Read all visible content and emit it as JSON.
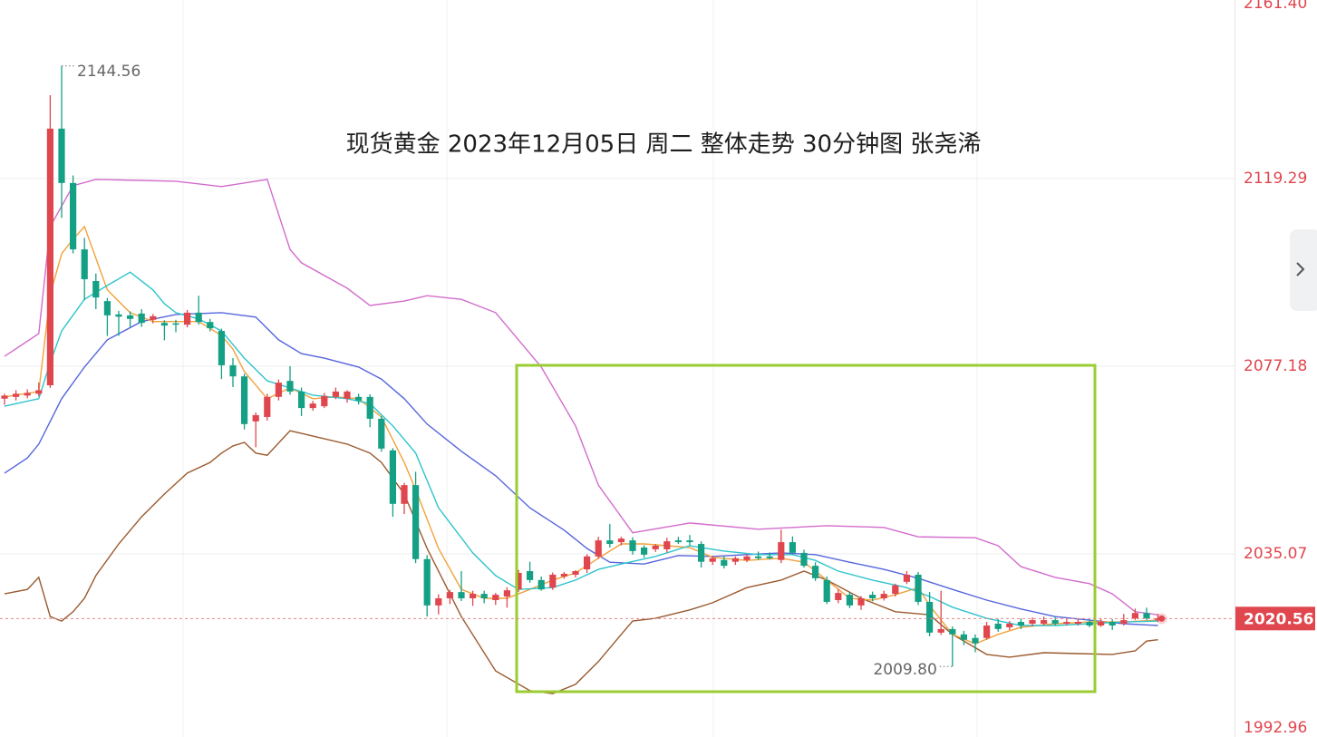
{
  "chart_data": {
    "type": "candlestick",
    "title": "现货黄金 2023年12月05日 周二 整体走势  30分钟图  张尧浠",
    "up_color": "#e0464e",
    "down_color": "#14a085",
    "ylim": [
      1992.96,
      2161.4
    ],
    "yticks": [
      {
        "value": 2161.4,
        "label": "2161.40"
      },
      2119.29,
      2077.18,
      2035.07,
      1992.96
    ],
    "grid": true,
    "last_price": 2020.56,
    "annotations": [
      2144.56,
      {
        "value": 2009.8,
        "label": "2009.80"
      }
    ],
    "open": [
      2069.9,
      2070.3,
      2070.6,
      2071.0,
      2072.9,
      2130.5,
      2118.3,
      2103.4,
      2096.3,
      2091.8,
      2088.8,
      2088.6,
      2089.0,
      2087.6,
      2086.9,
      2086.8,
      2086.5,
      2089.2,
      2087.1,
      2085.1,
      2077.4,
      2074.9,
      2064.8,
      2065.8,
      2070.3,
      2073.9,
      2071.5,
      2067.8,
      2068.2,
      2070.3,
      2069.9,
      2070.3,
      2070.3,
      2065.4,
      2058.3,
      2046.3,
      2050.5,
      2033.9,
      2023.5,
      2025.1,
      2026.5,
      2025.1,
      2026.1,
      2024.7,
      2025.5,
      2027.1,
      2031.2,
      2029.2,
      2027.5,
      2030.0,
      2030.4,
      2031.6,
      2034.5,
      2038.1,
      2037.7,
      2038.1,
      2036.5,
      2036.1,
      2036.1,
      2038.1,
      2038.1,
      2037.3,
      2033.3,
      2033.7,
      2033.3,
      2033.7,
      2034.5,
      2034.5,
      2033.7,
      2037.7,
      2035.3,
      2032.4,
      2029.2,
      2024.7,
      2025.9,
      2023.5,
      2025.9,
      2025.1,
      2026.1,
      2028.8,
      2030.4,
      2024.3,
      2017.4,
      2018.2,
      2017.0,
      2016.2,
      2016.2,
      2019.4,
      2018.6,
      2019.8,
      2019.4,
      2019.4,
      2020.2,
      2019.4,
      2019.4,
      2019.8,
      2019.0,
      2019.8,
      2019.4,
      2020.6,
      2021.8,
      2020.2
    ],
    "high": [
      2071.0,
      2071.8,
      2072.0,
      2073.5,
      2138.0,
      2144.56,
      2120.0,
      2106.0,
      2098.0,
      2092.5,
      2089.6,
      2089.5,
      2090.0,
      2088.9,
      2087.5,
      2087.6,
      2089.8,
      2093.0,
      2087.8,
      2085.6,
      2079.0,
      2075.5,
      2066.8,
      2071.0,
      2074.2,
      2077.2,
      2072.4,
      2069.4,
      2071.2,
      2072.4,
      2071.8,
      2071.0,
      2070.9,
      2066.0,
      2058.8,
      2051.0,
      2053.5,
      2034.8,
      2026.0,
      2027.0,
      2031.2,
      2026.8,
      2026.8,
      2026.3,
      2027.6,
      2031.5,
      2033.3,
      2030.0,
      2030.9,
      2031.0,
      2031.4,
      2035.0,
      2038.9,
      2041.8,
      2038.9,
      2038.8,
      2037.0,
      2037.3,
      2038.7,
      2038.9,
      2039.3,
      2037.9,
      2034.6,
      2034.6,
      2034.5,
      2035.0,
      2035.6,
      2035.4,
      2040.5,
      2039.0,
      2036.0,
      2033.2,
      2030.0,
      2027.2,
      2026.5,
      2025.6,
      2026.6,
      2026.8,
      2028.4,
      2031.2,
      2031.0,
      2026.5,
      2026.8,
      2018.8,
      2017.8,
      2017.0,
      2019.8,
      2020.5,
      2020.0,
      2020.6,
      2020.8,
      2021.0,
      2021.0,
      2020.6,
      2020.5,
      2020.4,
      2020.5,
      2020.4,
      2021.6,
      2022.8,
      2023.0,
      2021.6
    ],
    "low": [
      2068.5,
      2069.5,
      2070.0,
      2070.4,
      2072.3,
      2110.5,
      2102.5,
      2092.0,
      2090.0,
      2084.0,
      2084.0,
      2086.0,
      2086.0,
      2086.8,
      2083.0,
      2084.8,
      2085.9,
      2086.5,
      2085.0,
      2074.3,
      2072.5,
      2063.0,
      2059.0,
      2065.0,
      2069.5,
      2070.8,
      2066.0,
      2067.2,
      2067.8,
      2069.8,
      2069.0,
      2068.6,
      2063.5,
      2058.0,
      2043.4,
      2044.0,
      2033.0,
      2021.0,
      2021.5,
      2023.8,
      2024.5,
      2023.4,
      2024.0,
      2023.6,
      2023.0,
      2026.5,
      2028.6,
      2026.8,
      2027.0,
      2029.5,
      2029.8,
      2030.8,
      2034.0,
      2036.5,
      2037.0,
      2034.9,
      2034.2,
      2035.5,
      2035.4,
      2037.3,
      2037.0,
      2032.0,
      2032.6,
      2031.8,
      2032.6,
      2033.2,
      2033.7,
      2033.8,
      2033.0,
      2034.9,
      2032.0,
      2029.0,
      2023.8,
      2024.0,
      2022.9,
      2022.5,
      2024.4,
      2024.6,
      2025.5,
      2028.3,
      2023.6,
      2016.6,
      2016.9,
      2009.8,
      2014.6,
      2013.0,
      2015.8,
      2017.6,
      2018.0,
      2018.2,
      2018.8,
      2019.0,
      2019.0,
      2019.0,
      2019.0,
      2018.6,
      2018.7,
      2018.0,
      2019.0,
      2020.2,
      2020.2,
      2019.8
    ],
    "close": [
      2070.6,
      2071.0,
      2071.2,
      2071.8,
      2130.5,
      2118.3,
      2103.4,
      2096.7,
      2092.6,
      2088.6,
      2088.3,
      2087.8,
      2086.9,
      2088.4,
      2086.3,
      2086.5,
      2089.2,
      2087.1,
      2085.7,
      2077.4,
      2074.9,
      2064.2,
      2066.2,
      2070.3,
      2073.5,
      2071.5,
      2067.8,
      2068.8,
      2070.5,
      2071.5,
      2071.5,
      2069.5,
      2065.4,
      2058.7,
      2046.3,
      2050.5,
      2033.9,
      2023.5,
      2025.1,
      2026.5,
      2025.1,
      2026.1,
      2025.1,
      2025.9,
      2026.9,
      2030.8,
      2029.2,
      2027.1,
      2030.4,
      2030.6,
      2031.2,
      2034.5,
      2038.1,
      2037.3,
      2038.5,
      2035.7,
      2034.9,
      2036.9,
      2037.9,
      2037.7,
      2037.7,
      2033.3,
      2034.1,
      2032.4,
      2034.1,
      2034.5,
      2034.1,
      2034.1,
      2037.7,
      2035.3,
      2032.4,
      2029.6,
      2024.3,
      2026.3,
      2023.5,
      2025.1,
      2025.1,
      2026.1,
      2028.0,
      2030.4,
      2024.3,
      2017.4,
      2018.2,
      2017.0,
      2015.8,
      2015.0,
      2019.0,
      2018.2,
      2019.4,
      2019.0,
      2020.2,
      2020.2,
      2019.4,
      2019.8,
      2019.8,
      2019.0,
      2019.8,
      2019.0,
      2020.2,
      2021.8,
      2020.6,
      2020.56
    ],
    "lines": [
      {
        "color": "#d36ccc",
        "x": [
          0,
          3,
          4,
          6,
          8,
          15,
          19,
          23,
          25,
          26,
          30,
          32,
          35,
          37,
          40,
          43,
          45,
          47,
          50,
          52,
          54,
          55,
          60,
          66,
          72,
          77,
          80,
          85,
          87,
          89,
          92,
          95,
          97,
          99,
          101
        ],
        "values": [
          2079.4,
          2084.5,
          2108.5,
          2117.7,
          2119.1,
          2118.7,
          2117.5,
          2119.1,
          2103.4,
          2100.4,
          2094.7,
          2090.8,
          2091.8,
          2093.0,
          2092.2,
          2089.2,
          2083.1,
          2077.0,
          2063.8,
          2050.5,
          2043.4,
          2039.8,
          2042.0,
          2040.6,
          2041.4,
          2041.0,
          2038.9,
          2038.7,
          2036.9,
          2032.2,
          2029.8,
          2028.4,
          2026.1,
          2022.1,
          2021.4
        ]
      },
      {
        "color": "#9a5a2e",
        "x": [
          0,
          2,
          3,
          4,
          5,
          6,
          7,
          8,
          10,
          12,
          14,
          16,
          18,
          19,
          20,
          21,
          22,
          23,
          25,
          26,
          30,
          32,
          33,
          35,
          37,
          40,
          43,
          46,
          48,
          50,
          52,
          54,
          55,
          57,
          60,
          62,
          65,
          68,
          70,
          72,
          75,
          78,
          81,
          83,
          86,
          88,
          91,
          94,
          97,
          99,
          100,
          101
        ],
        "values": [
          2026.1,
          2027.1,
          2029.8,
          2021.0,
          2020.0,
          2022.1,
          2025.1,
          2030.2,
          2037.3,
          2043.4,
          2048.5,
          2053.2,
          2055.6,
          2057.7,
          2059.3,
          2060.1,
          2057.7,
          2057.2,
          2062.7,
          2062.1,
          2059.7,
          2057.7,
          2055.6,
          2048.5,
          2036.3,
          2021.0,
          2008.8,
          2004.4,
          2003.7,
          2005.8,
          2010.9,
          2017.0,
          2020.0,
          2020.6,
          2022.5,
          2024.1,
          2027.5,
          2029.2,
          2031.2,
          2029.2,
          2025.1,
          2022.1,
          2021.4,
          2017.0,
          2012.5,
          2011.9,
          2012.9,
          2012.7,
          2012.5,
          2013.3,
          2015.5,
          2015.8
        ]
      },
      {
        "color": "#5566dd",
        "x": [
          0,
          2,
          3,
          5,
          7,
          9,
          12,
          15,
          17,
          19,
          22,
          24,
          26,
          28,
          31,
          33,
          35,
          37,
          40,
          43,
          46,
          49,
          51,
          53,
          56,
          59,
          62,
          65,
          68,
          71,
          74,
          77,
          80,
          83,
          86,
          89,
          92,
          95,
          98,
          101
        ],
        "values": [
          2053.2,
          2056.6,
          2059.7,
          2069.9,
          2077.0,
          2083.1,
          2087.2,
          2088.8,
          2089.0,
          2089.2,
          2088.2,
          2083.1,
          2080.0,
          2079.0,
          2077.0,
          2074.3,
          2069.9,
          2064.2,
          2058.1,
          2052.6,
          2045.4,
          2040.4,
          2036.3,
          2033.2,
          2032.8,
          2034.7,
          2034.5,
          2034.9,
          2035.3,
          2034.9,
          2033.2,
          2031.6,
          2029.6,
          2027.1,
          2024.7,
          2022.7,
          2021.0,
          2020.2,
          2019.4,
          2019.0
        ]
      },
      {
        "color": "#f2a23a",
        "x": [
          0,
          3,
          4,
          5,
          6,
          7,
          8,
          9,
          11,
          13,
          15,
          17,
          19,
          20,
          21,
          23,
          25,
          27,
          29,
          31,
          33,
          35,
          36,
          38,
          40,
          42,
          44,
          46,
          48,
          50,
          52,
          54,
          56,
          58,
          60,
          62,
          65,
          68,
          70,
          72,
          74,
          76,
          78,
          80,
          81,
          83,
          85,
          87,
          89,
          92,
          95,
          98,
          101
        ],
        "values": [
          2070.3,
          2071.5,
          2093.3,
          2102.4,
          2105.7,
          2108.5,
          2101.4,
          2094.3,
          2089.2,
          2087.2,
          2087.2,
          2087.2,
          2084.1,
          2081.0,
          2076.0,
          2069.9,
          2072.3,
          2069.9,
          2070.3,
          2069.9,
          2065.8,
          2055.6,
          2049.5,
          2036.3,
          2027.1,
          2025.1,
          2025.1,
          2027.1,
          2029.2,
          2030.8,
          2034.1,
          2037.3,
          2037.3,
          2036.9,
          2036.5,
          2034.3,
          2033.6,
          2034.1,
          2033.2,
          2029.2,
          2025.1,
          2024.7,
          2025.9,
          2027.5,
          2023.5,
          2017.0,
          2014.9,
          2017.0,
          2018.6,
          2019.4,
          2019.8,
          2019.8,
          2020.2
        ]
      },
      {
        "color": "#2ec4cc",
        "x": [
          0,
          3,
          4,
          5,
          7,
          9,
          11,
          13,
          14,
          15,
          17,
          19,
          21,
          23,
          25,
          27,
          30,
          32,
          34,
          36,
          38,
          41,
          43,
          45,
          48,
          50,
          52,
          54,
          57,
          60,
          63,
          66,
          69,
          71,
          73,
          76,
          79,
          81,
          83,
          86,
          89,
          92,
          95,
          98,
          101
        ],
        "values": [
          2068.2,
          2069.9,
          2078.0,
          2085.1,
          2092.2,
          2095.3,
          2098.3,
          2094.3,
          2091.2,
          2089.2,
          2087.8,
          2085.1,
          2079.0,
          2073.9,
          2072.3,
          2070.7,
          2069.9,
          2068.8,
          2063.8,
          2057.7,
          2045.4,
          2035.3,
          2030.2,
          2027.1,
          2027.5,
          2029.2,
          2031.6,
          2032.8,
          2034.5,
          2036.9,
          2035.7,
          2034.9,
          2034.9,
          2033.6,
          2031.2,
          2029.2,
          2027.5,
          2025.5,
          2023.1,
          2020.6,
          2019.0,
          2019.0,
          2019.4,
          2019.8,
          2020.0
        ]
      }
    ]
  }
}
